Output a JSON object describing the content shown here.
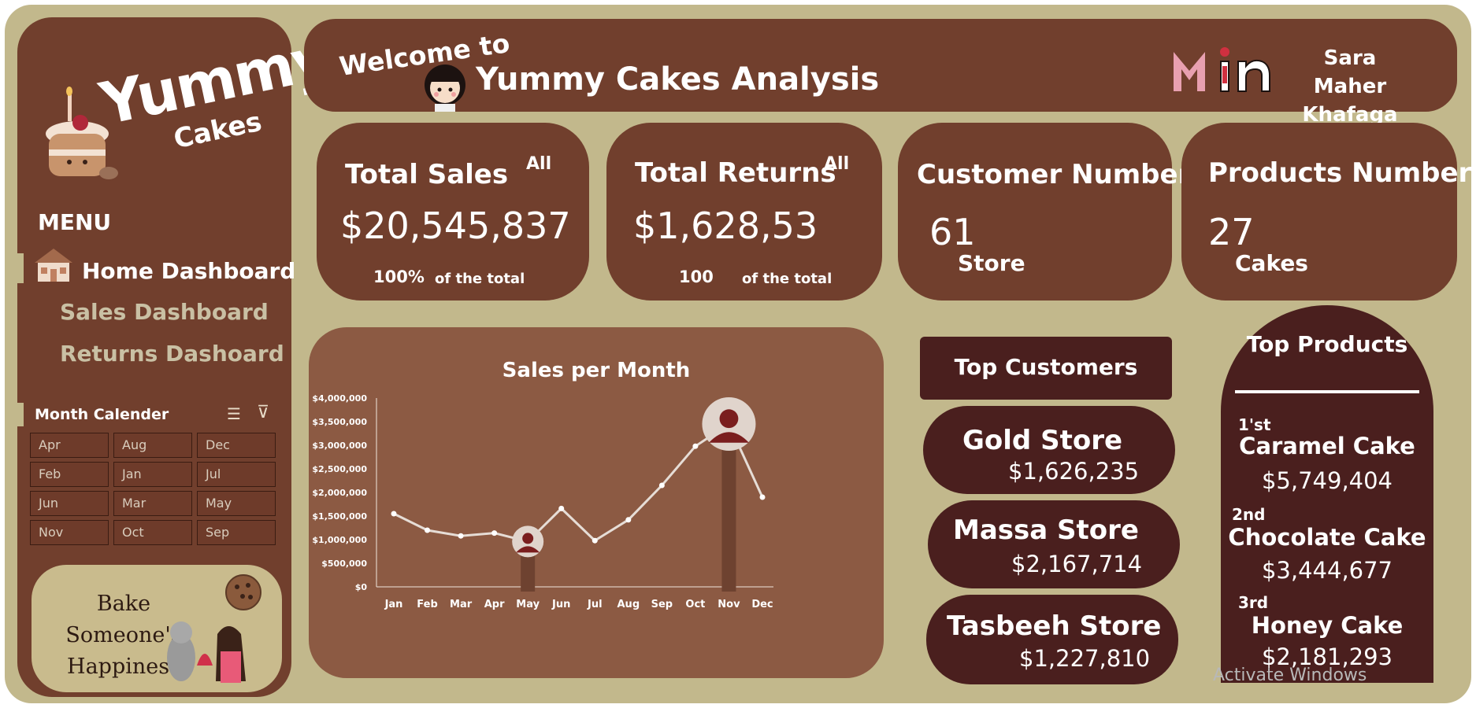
{
  "header": {
    "welcome": "Welcome to",
    "title": "Yummy Cakes Analysis",
    "user_name": "Sara Maher Khafaga"
  },
  "sidebar": {
    "logo_main": "Yummy",
    "logo_sub": "Cakes",
    "menu_title": "MENU",
    "menu_items": [
      {
        "label": "Home Dashboard",
        "active": true
      },
      {
        "label": "Sales Dashboard",
        "active": false
      },
      {
        "label": "Returns Dashoard",
        "active": false
      }
    ],
    "calendar_title": "Month Calender",
    "months": [
      "Apr",
      "Aug",
      "Dec",
      "Feb",
      "Jan",
      "Jul",
      "Jun",
      "Mar",
      "May",
      "Nov",
      "Oct",
      "Sep"
    ],
    "tagline": "Bake Someone's Happiness"
  },
  "kpis": {
    "total_sales": {
      "title": "Total Sales",
      "filter": "All",
      "value": "$20,545,837",
      "pct": "100%",
      "pct_label": "of the total"
    },
    "total_returns": {
      "title": "Total Returns",
      "filter": "All",
      "value": "$1,628,53",
      "pct": "100",
      "pct_label": "of the total"
    },
    "customers": {
      "title": "Customer Number",
      "value": "61",
      "unit": "Store"
    },
    "products": {
      "title": "Products Number",
      "value": "27",
      "unit": "Cakes"
    }
  },
  "top_customers": {
    "title": "Top Customers",
    "items": [
      {
        "name": "Gold Store",
        "value": "$1,626,235"
      },
      {
        "name": "Massa Store",
        "value": "$2,167,714"
      },
      {
        "name": "Tasbeeh Store",
        "value": "$1,227,810"
      }
    ]
  },
  "top_products": {
    "title": "Top Products",
    "items": [
      {
        "rank": "1'st",
        "name": "Caramel Cake",
        "value": "$5,749,404"
      },
      {
        "rank": "2nd",
        "name": "Chocolate Cake",
        "value": "$3,444,677"
      },
      {
        "rank": "3rd",
        "name": "Honey Cake",
        "value": "$2,181,293"
      }
    ]
  },
  "chart_data": {
    "type": "line",
    "title": "Sales per Month",
    "categories": [
      "Jan",
      "Feb",
      "Mar",
      "Apr",
      "May",
      "Jun",
      "Jul",
      "Aug",
      "Sep",
      "Oct",
      "Nov",
      "Dec"
    ],
    "values": [
      1550000,
      1200000,
      1080000,
      1140000,
      960000,
      1660000,
      980000,
      1420000,
      2150000,
      2980000,
      3450000,
      1900000
    ],
    "ylim": [
      0,
      4000000
    ],
    "yticks": [
      "$0",
      "$500,000",
      "$1,000,000",
      "$1,500,000",
      "$2,000,000",
      "$2,500,000",
      "$3,000,000",
      "$3,500,000",
      "$4,000,000"
    ],
    "min_month_index": 4,
    "max_month_index": 10,
    "colors": {
      "line": "#e6ddd6",
      "marker_bg": "#e0d4cc",
      "marker_fg": "#7a1e1e",
      "bar": "#6e4230"
    }
  },
  "watermark": "Activate Windows"
}
